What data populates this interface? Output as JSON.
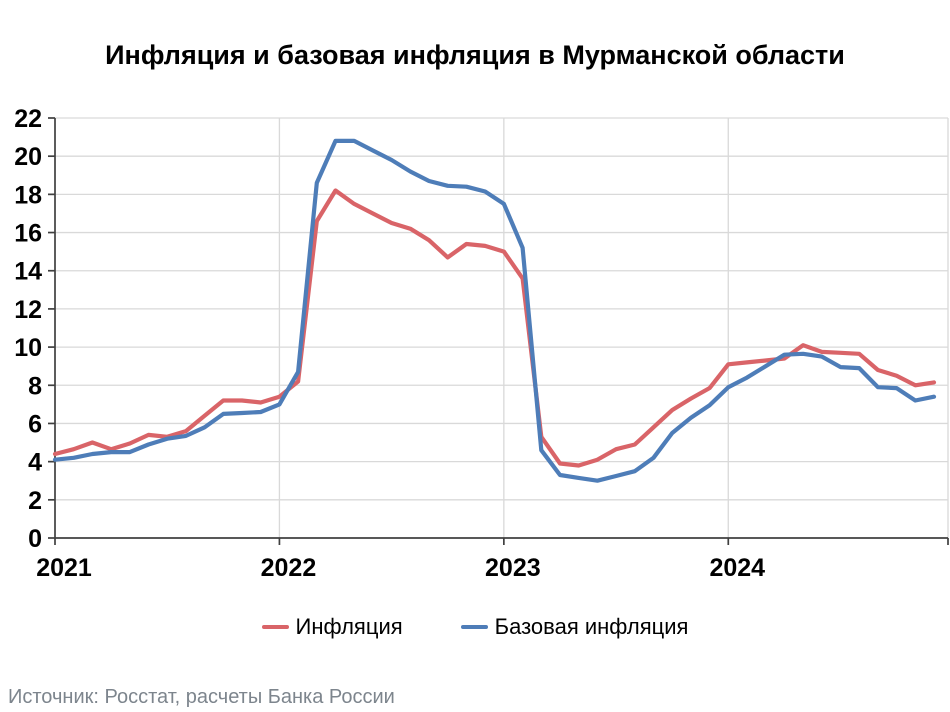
{
  "title": "Инфляция и базовая инфляция в Мурманской области",
  "source_note": "Источник: Росстат, расчеты Банка России",
  "chart_data": {
    "type": "line",
    "title": "Инфляция и базовая инфляция в Мурманской области",
    "x_tick_labels": [
      "2021",
      "2022",
      "2023",
      "2024"
    ],
    "months_per_year": 12,
    "ylim": [
      0,
      22
    ],
    "y_tick_step": 2,
    "grid": "on",
    "legend_position": "bottom",
    "grid_color": "#d9d9d9",
    "axis_color": "#404040",
    "series": [
      {
        "id": "inflation",
        "name": "Инфляция",
        "color": "#d96468",
        "values": [
          4.4,
          4.65,
          5.0,
          4.65,
          4.95,
          5.4,
          5.3,
          5.6,
          6.4,
          7.2,
          7.2,
          7.1,
          7.4,
          8.2,
          16.6,
          18.2,
          17.5,
          17.0,
          16.5,
          16.2,
          15.6,
          14.7,
          15.4,
          15.3,
          15.0,
          13.6,
          5.3,
          3.9,
          3.8,
          4.1,
          4.65,
          4.9,
          5.8,
          6.7,
          7.3,
          7.85,
          9.1,
          9.2,
          9.3,
          9.4,
          10.1,
          9.75,
          9.7,
          9.65,
          8.8,
          8.5,
          8.0,
          8.15
        ]
      },
      {
        "id": "core-inflation",
        "name": "Базовая инфляция",
        "color": "#4e7db8",
        "values": [
          4.1,
          4.2,
          4.4,
          4.5,
          4.5,
          4.9,
          5.2,
          5.35,
          5.8,
          6.5,
          6.55,
          6.6,
          7.0,
          8.7,
          18.6,
          20.8,
          20.8,
          20.3,
          19.8,
          19.2,
          18.7,
          18.45,
          18.4,
          18.15,
          17.5,
          15.2,
          4.6,
          3.3,
          3.15,
          3.0,
          3.25,
          3.5,
          4.2,
          5.5,
          6.3,
          6.95,
          7.9,
          8.4,
          9.0,
          9.6,
          9.65,
          9.5,
          8.95,
          8.9,
          7.9,
          7.85,
          7.2,
          7.4
        ]
      }
    ]
  }
}
